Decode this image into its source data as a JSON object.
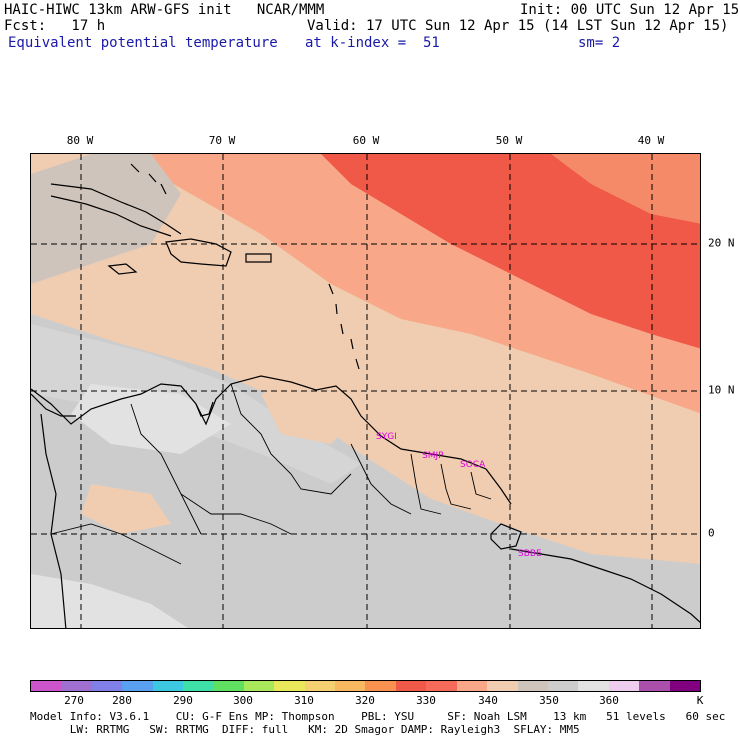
{
  "header": {
    "line1_left": "HAIC-HIWC 13km ARW-GFS init   NCAR/MMM",
    "line1_right": "Init: 00 UTC Sun 12 Apr 15",
    "line2_left": "Fcst:   17 h",
    "line2_right": "Valid: 17 UTC Sun 12 Apr 15 (14 LST Sun 12 Apr 15)",
    "line3_field": "Equivalent potential temperature",
    "line3_level": "at k-index =  51",
    "line3_smooth": "sm= 2"
  },
  "map": {
    "lon_labels": [
      "80 W",
      "70 W",
      "60 W",
      "50 W",
      "40 W"
    ],
    "lat_labels": [
      "20 N",
      "10 N",
      "0"
    ],
    "stations": [
      "SYGI",
      "SMJP",
      "SOCA",
      "SBBE"
    ]
  },
  "colorbar": {
    "colors": [
      "#cc55cc",
      "#a070d0",
      "#8080e8",
      "#5aa0f0",
      "#3cc8e0",
      "#3ee0a8",
      "#60e060",
      "#a8e85a",
      "#e8e85a",
      "#f4d070",
      "#f8b860",
      "#f89050",
      "#f05848",
      "#f56a58",
      "#f8a888",
      "#f0ccb0",
      "#cfc4bc",
      "#cccccc",
      "#e2e2e2",
      "#eeccee",
      "#aa50aa",
      "#800080"
    ],
    "labels": [
      "270",
      "280",
      "290",
      "300",
      "310",
      "320",
      "330",
      "340",
      "350",
      "360",
      "K"
    ]
  },
  "footer": {
    "line1": "Model Info: V3.6.1    CU: G-F Ens MP: Thompson    PBL: YSU     SF: Noah LSM    13 km   51 levels   60 sec",
    "line2": "      LW: RRTMG   SW: RRTMG  DIFF: full   KM: 2D Smagor DAMP: Rayleigh3  SFLAY: MM5"
  }
}
